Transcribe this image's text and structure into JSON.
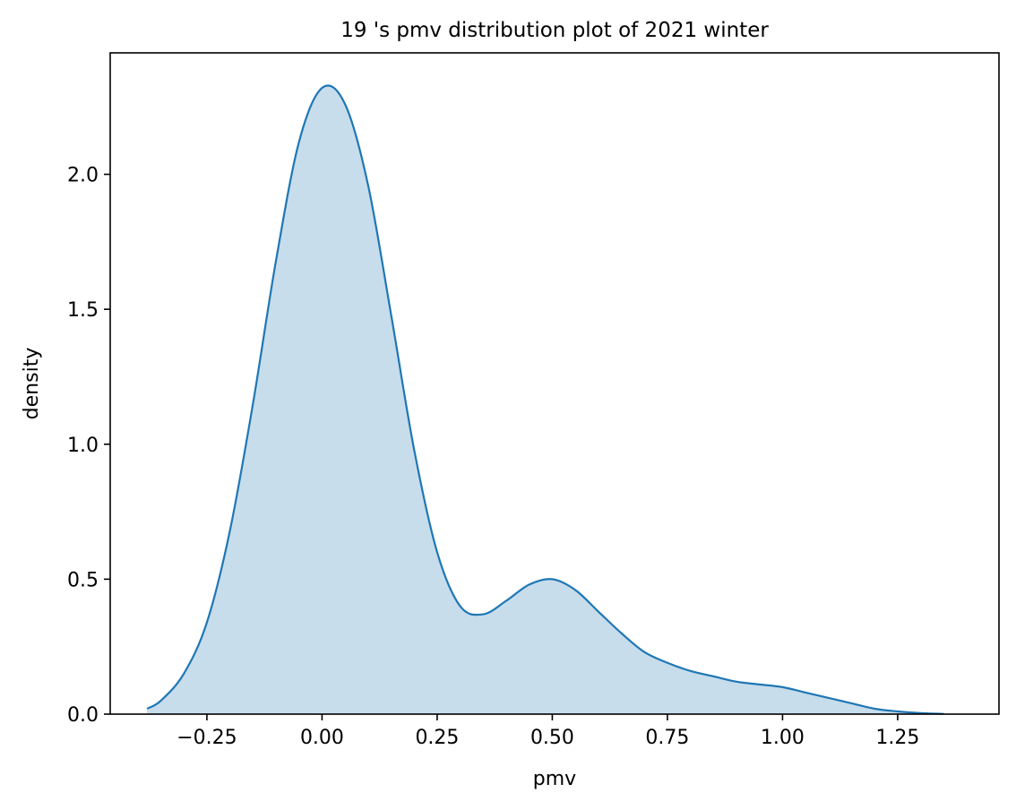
{
  "chart_data": {
    "type": "area",
    "title": "19 's pmv distribution plot of 2021 winter",
    "xlabel": "pmv",
    "ylabel": "density",
    "xlim": [
      -0.46,
      1.47
    ],
    "ylim": [
      0.0,
      2.45
    ],
    "x_ticks": [
      -0.25,
      0.0,
      0.25,
      0.5,
      0.75,
      1.0,
      1.25
    ],
    "x_tick_labels": [
      "−0.25",
      "0.00",
      "0.25",
      "0.50",
      "0.75",
      "1.00",
      "1.25"
    ],
    "y_ticks": [
      0.0,
      0.5,
      1.0,
      1.5,
      2.0
    ],
    "y_tick_labels": [
      "0.0",
      "0.5",
      "1.0",
      "1.5",
      "2.0"
    ],
    "grid": false,
    "legend": "none",
    "colors": {
      "line": "#1f77b4",
      "fill": "#1f77b4",
      "fill_opacity": 0.25
    },
    "series": [
      {
        "x": [
          -0.38,
          -0.35,
          -0.3,
          -0.25,
          -0.2,
          -0.15,
          -0.1,
          -0.05,
          0.0,
          0.05,
          0.1,
          0.15,
          0.2,
          0.25,
          0.3,
          0.35,
          0.4,
          0.45,
          0.5,
          0.55,
          0.6,
          0.65,
          0.7,
          0.75,
          0.8,
          0.85,
          0.9,
          0.95,
          1.0,
          1.05,
          1.1,
          1.15,
          1.2,
          1.25,
          1.3,
          1.35
        ],
        "y": [
          0.02,
          0.05,
          0.15,
          0.34,
          0.68,
          1.15,
          1.68,
          2.12,
          2.32,
          2.26,
          1.96,
          1.48,
          0.98,
          0.6,
          0.4,
          0.37,
          0.42,
          0.48,
          0.5,
          0.46,
          0.38,
          0.3,
          0.23,
          0.19,
          0.16,
          0.14,
          0.12,
          0.11,
          0.1,
          0.08,
          0.06,
          0.04,
          0.02,
          0.01,
          0.004,
          0.001
        ]
      }
    ]
  }
}
